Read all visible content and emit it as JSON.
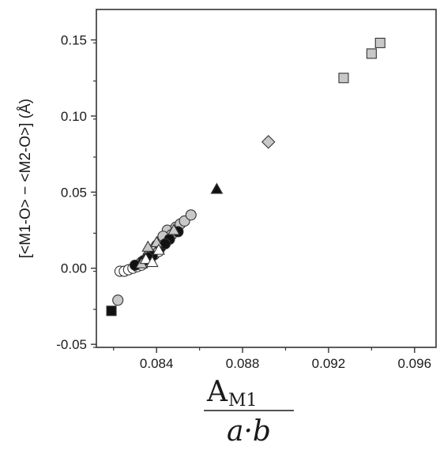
{
  "chart_data": {
    "type": "scatter",
    "ylabel": "[<M1-O> − <M2-O>] (Å)",
    "xlabel": {
      "numerator": "A",
      "numerator_sub": "M1",
      "denominator": "a·b"
    },
    "xlim": [
      0.0812,
      0.097
    ],
    "ylim": [
      -0.052,
      0.17
    ],
    "x_ticks": [
      0.084,
      0.088,
      0.092,
      0.096
    ],
    "x_tick_labels": [
      "0.084",
      "0.088",
      "0.092",
      "0.096"
    ],
    "y_ticks": [
      -0.05,
      0.0,
      0.05,
      0.1,
      0.15
    ],
    "y_tick_labels": [
      "-0.05",
      "0.00",
      "0.05",
      "0.10",
      "0.15"
    ],
    "grid": false,
    "colors": {
      "axis": "#333333",
      "marker_light_fill": "#c8c8c8",
      "marker_dark_fill": "#111111",
      "marker_open_fill": "#ffffff",
      "marker_edge": "#333333"
    },
    "series": [
      {
        "marker": "square",
        "fill": "light",
        "points": [
          [
            0.0927,
            0.125
          ],
          [
            0.094,
            0.141
          ],
          [
            0.0944,
            0.148
          ]
        ]
      },
      {
        "marker": "diamond",
        "fill": "light",
        "points": [
          [
            0.0892,
            0.083
          ]
        ]
      },
      {
        "marker": "triangle",
        "fill": "dark",
        "points": [
          [
            0.0868,
            0.052
          ]
        ]
      },
      {
        "marker": "square",
        "fill": "dark",
        "points": [
          [
            0.0819,
            -0.028
          ]
        ]
      },
      {
        "marker": "circle",
        "fill": "light",
        "points": [
          [
            0.0822,
            -0.021
          ],
          [
            0.0833,
            0.004
          ],
          [
            0.0836,
            0.008
          ],
          [
            0.0838,
            0.012
          ],
          [
            0.084,
            0.015
          ],
          [
            0.0842,
            0.018
          ],
          [
            0.0844,
            0.02
          ],
          [
            0.0845,
            0.025
          ],
          [
            0.0847,
            0.022
          ],
          [
            0.0849,
            0.027
          ],
          [
            0.0851,
            0.029
          ],
          [
            0.0853,
            0.031
          ],
          [
            0.0856,
            0.035
          ],
          [
            0.0843,
            0.021
          ],
          [
            0.0839,
            0.013
          ]
        ]
      },
      {
        "marker": "circle",
        "fill": "open",
        "points": [
          [
            0.0823,
            -0.002
          ],
          [
            0.0825,
            -0.002
          ],
          [
            0.0827,
            -0.001
          ],
          [
            0.0829,
            0.0
          ],
          [
            0.0831,
            0.001
          ],
          [
            0.0833,
            0.002
          ],
          [
            0.0835,
            0.004
          ],
          [
            0.0837,
            0.006
          ],
          [
            0.0839,
            0.009
          ],
          [
            0.0841,
            0.011
          ]
        ]
      },
      {
        "marker": "circle",
        "fill": "dark",
        "points": [
          [
            0.083,
            0.002
          ],
          [
            0.0834,
            0.005
          ],
          [
            0.0838,
            0.008
          ],
          [
            0.0842,
            0.014
          ],
          [
            0.0846,
            0.019
          ],
          [
            0.085,
            0.024
          ],
          [
            0.0836,
            0.007
          ],
          [
            0.0844,
            0.016
          ]
        ]
      },
      {
        "marker": "triangle",
        "fill": "light",
        "points": [
          [
            0.0836,
            0.014
          ],
          [
            0.084,
            0.017
          ],
          [
            0.0848,
            0.025
          ],
          [
            0.0833,
            0.003
          ]
        ]
      },
      {
        "marker": "triangle",
        "fill": "open",
        "points": [
          [
            0.0835,
            0.006
          ],
          [
            0.0838,
            0.004
          ],
          [
            0.0841,
            0.012
          ]
        ]
      }
    ]
  }
}
